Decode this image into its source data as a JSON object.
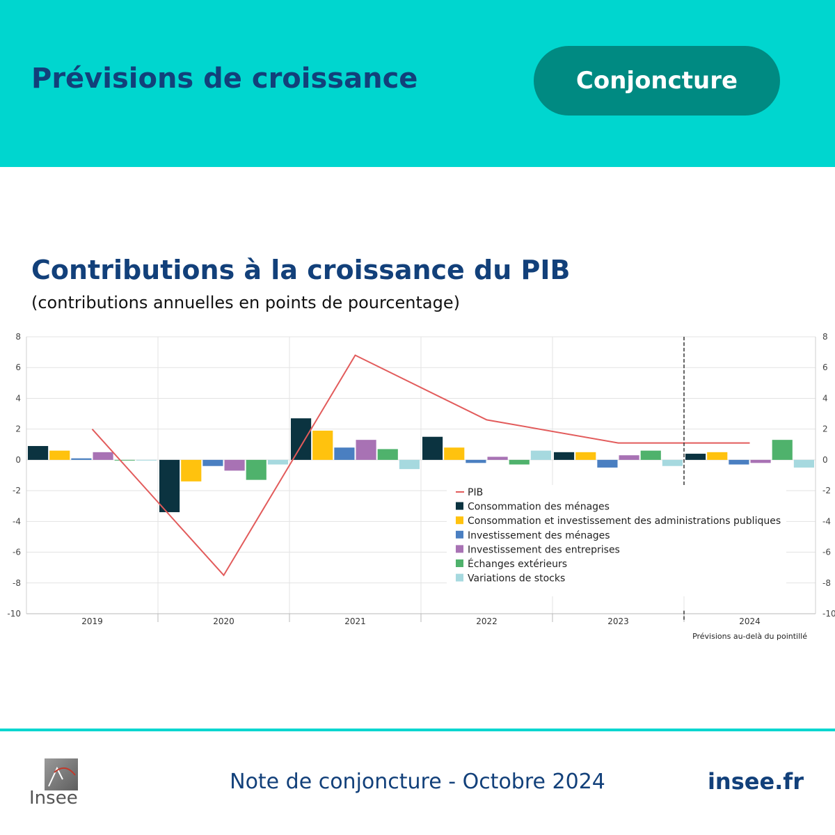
{
  "header": {
    "title": "Prévisions de croissance",
    "badge": "Conjoncture"
  },
  "chart_data": {
    "type": "bar",
    "title": "Contributions à la croissance du PIB",
    "subtitle": "(contributions annuelles en points de pourcentage)",
    "categories": [
      "2019",
      "2020",
      "2021",
      "2022",
      "2023",
      "2024"
    ],
    "ylim": [
      -10,
      8
    ],
    "yticks": [
      8,
      6,
      4,
      2,
      0,
      -2,
      -4,
      -6,
      -8,
      -10
    ],
    "grid": true,
    "legend_position": "bottom-right",
    "series": [
      {
        "name": "Consommation des ménages",
        "color": "#0b3340",
        "values": [
          0.9,
          -3.4,
          2.7,
          1.5,
          0.5,
          0.4
        ]
      },
      {
        "name": "Consommation et investissement des administrations publiques",
        "color": "#ffc20e",
        "values": [
          0.6,
          -1.4,
          1.9,
          0.8,
          0.5,
          0.5
        ]
      },
      {
        "name": "Investissement des ménages",
        "color": "#4a7fc1",
        "values": [
          0.1,
          -0.4,
          0.8,
          -0.2,
          -0.5,
          -0.3
        ]
      },
      {
        "name": "Investissement des entreprises",
        "color": "#a872b4",
        "values": [
          0.5,
          -0.7,
          1.3,
          0.2,
          0.3,
          -0.2
        ]
      },
      {
        "name": "Échanges extérieurs",
        "color": "#4fb26c",
        "values": [
          0.0,
          -1.3,
          0.7,
          -0.3,
          0.6,
          1.3
        ]
      },
      {
        "name": "Variations de stocks",
        "color": "#a6d9df",
        "values": [
          0.0,
          -0.3,
          -0.6,
          0.6,
          -0.4,
          -0.5
        ]
      }
    ],
    "line": {
      "name": "PIB",
      "color": "#e25b5b",
      "values": [
        2.0,
        -7.5,
        6.8,
        2.6,
        1.1,
        1.1
      ]
    },
    "forecast_note": "Prévisions au-delà du pointillé"
  },
  "footer": {
    "logo_text": "Insee",
    "center": "Note de conjoncture - Octobre 2024",
    "right": "insee.fr"
  }
}
